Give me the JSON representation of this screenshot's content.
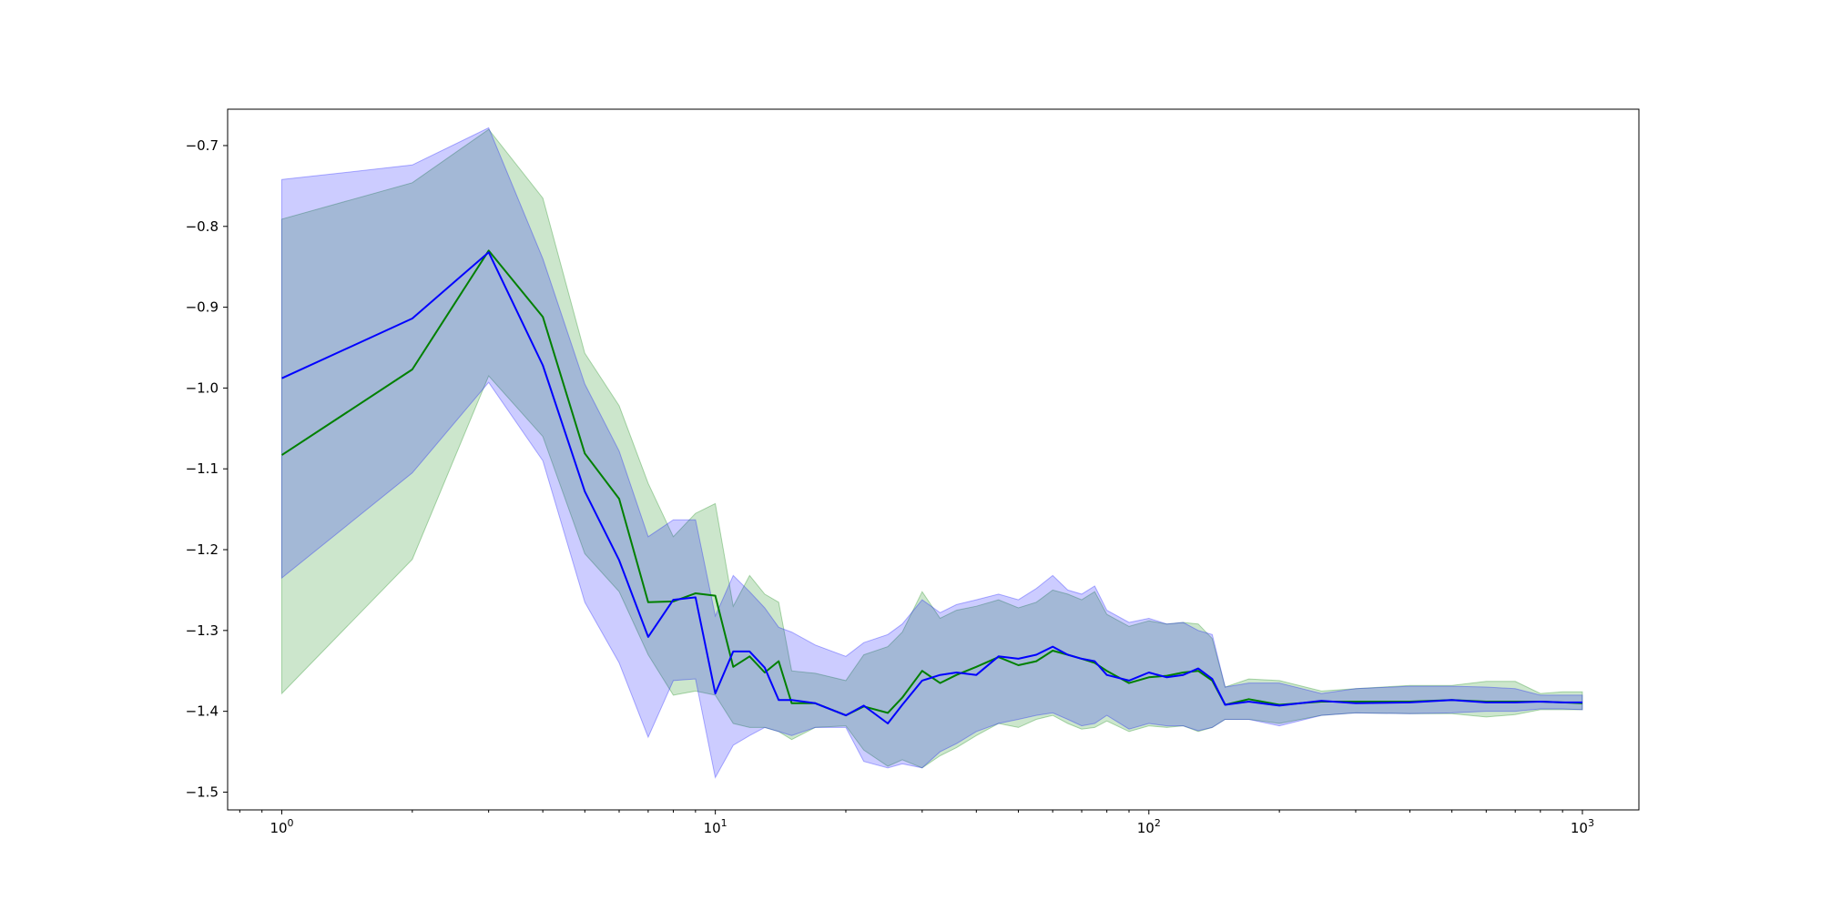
{
  "chart_data": {
    "type": "line",
    "title": "",
    "xlabel": "",
    "ylabel": "",
    "xscale": "log",
    "xlim": [
      0.75,
      1350
    ],
    "ylim": [
      -1.522,
      -0.655
    ],
    "grid": false,
    "legend": "none",
    "x_ticks": [
      {
        "value": 1,
        "base": "10",
        "exp": "0"
      },
      {
        "value": 10,
        "base": "10",
        "exp": "1"
      },
      {
        "value": 100,
        "base": "10",
        "exp": "2"
      },
      {
        "value": 1000,
        "base": "10",
        "exp": "3"
      }
    ],
    "y_ticks": [
      {
        "value": -0.7,
        "label": "−0.7"
      },
      {
        "value": -0.8,
        "label": "−0.8"
      },
      {
        "value": -0.9,
        "label": "−0.9"
      },
      {
        "value": -1.0,
        "label": "−1.0"
      },
      {
        "value": -1.1,
        "label": "−1.1"
      },
      {
        "value": -1.2,
        "label": "−1.2"
      },
      {
        "value": -1.3,
        "label": "−1.3"
      },
      {
        "value": -1.4,
        "label": "−1.4"
      },
      {
        "value": -1.5,
        "label": "−1.5"
      }
    ],
    "series": [
      {
        "color": "#008000",
        "band_color": "#008000",
        "x": [
          1,
          2,
          3,
          4,
          5,
          6,
          7,
          8,
          9,
          10,
          11,
          12,
          13,
          14,
          15,
          17,
          20,
          22,
          25,
          27,
          30,
          33,
          36,
          40,
          45,
          50,
          55,
          60,
          65,
          70,
          75,
          80,
          90,
          100,
          110,
          120,
          130,
          140,
          150,
          170,
          200,
          250,
          300,
          400,
          500,
          600,
          700,
          800,
          900,
          1000
        ],
        "y": [
          -1.083,
          -0.977,
          -0.83,
          -0.912,
          -1.081,
          -1.137,
          -1.265,
          -1.264,
          -1.254,
          -1.257,
          -1.345,
          -1.332,
          -1.352,
          -1.338,
          -1.39,
          -1.39,
          -1.405,
          -1.394,
          -1.402,
          -1.383,
          -1.35,
          -1.365,
          -1.355,
          -1.345,
          -1.333,
          -1.343,
          -1.338,
          -1.325,
          -1.33,
          -1.335,
          -1.34,
          -1.35,
          -1.365,
          -1.358,
          -1.356,
          -1.352,
          -1.35,
          -1.362,
          -1.392,
          -1.385,
          -1.392,
          -1.388,
          -1.388,
          -1.388,
          -1.386,
          -1.388,
          -1.388,
          -1.388,
          -1.389,
          -1.39
        ],
        "upper": [
          -0.791,
          -0.746,
          -0.68,
          -0.765,
          -0.957,
          -1.022,
          -1.118,
          -1.184,
          -1.155,
          -1.143,
          -1.27,
          -1.232,
          -1.255,
          -1.265,
          -1.35,
          -1.353,
          -1.362,
          -1.33,
          -1.32,
          -1.302,
          -1.252,
          -1.285,
          -1.275,
          -1.27,
          -1.262,
          -1.272,
          -1.265,
          -1.25,
          -1.255,
          -1.262,
          -1.252,
          -1.28,
          -1.295,
          -1.288,
          -1.292,
          -1.29,
          -1.292,
          -1.31,
          -1.37,
          -1.36,
          -1.362,
          -1.375,
          -1.372,
          -1.368,
          -1.368,
          -1.363,
          -1.363,
          -1.378,
          -1.376,
          -1.376
        ],
        "lower": [
          -1.378,
          -1.212,
          -0.985,
          -1.06,
          -1.205,
          -1.252,
          -1.33,
          -1.38,
          -1.375,
          -1.38,
          -1.415,
          -1.42,
          -1.42,
          -1.425,
          -1.435,
          -1.42,
          -1.418,
          -1.448,
          -1.468,
          -1.46,
          -1.47,
          -1.455,
          -1.445,
          -1.43,
          -1.415,
          -1.42,
          -1.41,
          -1.405,
          -1.415,
          -1.422,
          -1.42,
          -1.412,
          -1.425,
          -1.418,
          -1.42,
          -1.418,
          -1.425,
          -1.42,
          -1.41,
          -1.41,
          -1.415,
          -1.405,
          -1.402,
          -1.403,
          -1.403,
          -1.407,
          -1.404,
          -1.398,
          -1.398,
          -1.398
        ]
      },
      {
        "color": "#0000ff",
        "band_color": "#0000ff",
        "x": [
          1,
          2,
          3,
          4,
          5,
          6,
          7,
          8,
          9,
          10,
          11,
          12,
          13,
          14,
          15,
          17,
          20,
          22,
          25,
          27,
          30,
          33,
          36,
          40,
          45,
          50,
          55,
          60,
          65,
          70,
          75,
          80,
          90,
          100,
          110,
          120,
          130,
          140,
          150,
          170,
          200,
          250,
          300,
          400,
          500,
          600,
          700,
          800,
          900,
          1000
        ],
        "y": [
          -0.988,
          -0.914,
          -0.832,
          -0.972,
          -1.128,
          -1.213,
          -1.308,
          -1.262,
          -1.259,
          -1.378,
          -1.326,
          -1.326,
          -1.346,
          -1.386,
          -1.386,
          -1.39,
          -1.405,
          -1.393,
          -1.415,
          -1.392,
          -1.362,
          -1.355,
          -1.352,
          -1.355,
          -1.332,
          -1.335,
          -1.33,
          -1.32,
          -1.33,
          -1.335,
          -1.338,
          -1.355,
          -1.362,
          -1.352,
          -1.358,
          -1.355,
          -1.347,
          -1.36,
          -1.392,
          -1.388,
          -1.393,
          -1.387,
          -1.39,
          -1.389,
          -1.386,
          -1.389,
          -1.389,
          -1.388,
          -1.389,
          -1.389
        ],
        "upper": [
          -0.742,
          -0.724,
          -0.678,
          -0.84,
          -0.995,
          -1.078,
          -1.184,
          -1.163,
          -1.163,
          -1.282,
          -1.232,
          -1.252,
          -1.272,
          -1.296,
          -1.302,
          -1.318,
          -1.332,
          -1.315,
          -1.305,
          -1.292,
          -1.262,
          -1.278,
          -1.268,
          -1.262,
          -1.255,
          -1.262,
          -1.248,
          -1.232,
          -1.25,
          -1.255,
          -1.245,
          -1.275,
          -1.29,
          -1.285,
          -1.292,
          -1.29,
          -1.3,
          -1.305,
          -1.37,
          -1.365,
          -1.365,
          -1.378,
          -1.372,
          -1.369,
          -1.369,
          -1.37,
          -1.372,
          -1.38,
          -1.38,
          -1.38
        ],
        "lower": [
          -1.235,
          -1.105,
          -0.993,
          -1.09,
          -1.265,
          -1.34,
          -1.432,
          -1.362,
          -1.36,
          -1.482,
          -1.442,
          -1.43,
          -1.42,
          -1.425,
          -1.43,
          -1.42,
          -1.42,
          -1.462,
          -1.47,
          -1.465,
          -1.47,
          -1.45,
          -1.44,
          -1.425,
          -1.415,
          -1.41,
          -1.405,
          -1.402,
          -1.41,
          -1.418,
          -1.415,
          -1.405,
          -1.422,
          -1.415,
          -1.418,
          -1.418,
          -1.424,
          -1.42,
          -1.41,
          -1.41,
          -1.418,
          -1.405,
          -1.402,
          -1.403,
          -1.402,
          -1.4,
          -1.4,
          -1.397,
          -1.397,
          -1.398
        ]
      }
    ]
  }
}
